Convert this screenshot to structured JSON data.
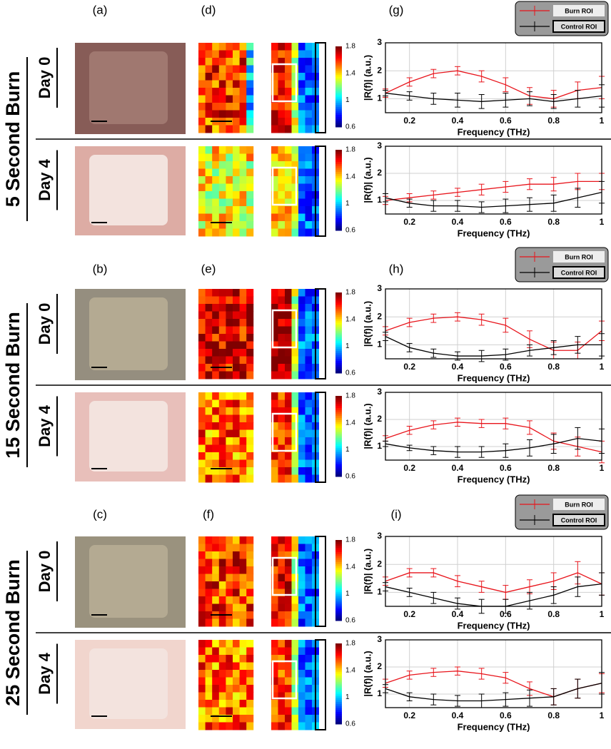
{
  "panel_labels": [
    "(a)",
    "(d)",
    "(g)",
    "(b)",
    "(e)",
    "(h)",
    "(c)",
    "(f)",
    "(i)"
  ],
  "rows": [
    {
      "burn": "5 Second Burn",
      "days": [
        "Day 0",
        "Day 4"
      ]
    },
    {
      "burn": "15 Second Burn",
      "days": [
        "Day 0",
        "Day 4"
      ]
    },
    {
      "burn": "25 Second Burn",
      "days": [
        "Day 0",
        "Day 4"
      ]
    }
  ],
  "colorbar_ticks": [
    1.8,
    1.4,
    1,
    0.6
  ],
  "chart_data": [
    {
      "type": "line",
      "legend": true,
      "xlabel": "Frequency (THz)",
      "ylabel": "|R(f)| (a.u.)",
      "xlim": [
        0.1,
        1
      ],
      "ylim": [
        0.5,
        3
      ],
      "xticks": [
        0.2,
        0.4,
        0.6,
        0.8,
        1
      ],
      "yticks": [
        1,
        2,
        3
      ],
      "grid": true,
      "x": [
        0.1,
        0.2,
        0.3,
        0.4,
        0.5,
        0.6,
        0.7,
        0.8,
        0.9,
        1
      ],
      "series": [
        {
          "name": "Burn ROI",
          "color": "#e8141b",
          "values": [
            1.2,
            1.6,
            1.9,
            2.0,
            1.8,
            1.5,
            1.1,
            1.0,
            1.3,
            1.4
          ],
          "errors": [
            0.15,
            0.15,
            0.15,
            0.15,
            0.2,
            0.25,
            0.3,
            0.3,
            0.3,
            0.4
          ]
        },
        {
          "name": "Control ROI",
          "color": "#000000",
          "values": [
            1.2,
            1.1,
            1.0,
            0.95,
            0.9,
            0.95,
            1.0,
            0.9,
            1.0,
            1.1
          ],
          "errors": [
            0.1,
            0.15,
            0.2,
            0.25,
            0.25,
            0.25,
            0.25,
            0.25,
            0.3,
            0.4
          ]
        }
      ]
    },
    {
      "type": "line",
      "legend": false,
      "xlabel": "Frequency (THz)",
      "ylabel": "|R(f)| (a.u.)",
      "xlim": [
        0.1,
        1
      ],
      "ylim": [
        0.5,
        3
      ],
      "xticks": [
        0.2,
        0.4,
        0.6,
        0.8,
        1
      ],
      "yticks": [
        1,
        2,
        3
      ],
      "grid": true,
      "x": [
        0.1,
        0.2,
        0.3,
        0.4,
        0.5,
        0.6,
        0.7,
        0.8,
        0.9,
        1
      ],
      "series": [
        {
          "name": "Burn ROI",
          "color": "#e8141b",
          "values": [
            1.0,
            1.1,
            1.2,
            1.3,
            1.4,
            1.5,
            1.6,
            1.6,
            1.7,
            1.7
          ],
          "errors": [
            0.15,
            0.15,
            0.15,
            0.15,
            0.2,
            0.2,
            0.2,
            0.25,
            0.3,
            0.3
          ]
        },
        {
          "name": "Control ROI",
          "color": "#000000",
          "values": [
            1.1,
            0.9,
            0.8,
            0.8,
            0.75,
            0.8,
            0.85,
            0.9,
            1.1,
            1.3
          ],
          "errors": [
            0.15,
            0.15,
            0.2,
            0.2,
            0.2,
            0.25,
            0.25,
            0.3,
            0.35,
            0.4
          ]
        }
      ]
    },
    {
      "type": "line",
      "legend": true,
      "xlabel": "Frequency (THz)",
      "ylabel": "|R(f)| (a.u.)",
      "xlim": [
        0.1,
        1
      ],
      "ylim": [
        0.5,
        3
      ],
      "xticks": [
        0.2,
        0.4,
        0.6,
        0.8,
        1
      ],
      "yticks": [
        1,
        2,
        3
      ],
      "grid": true,
      "x": [
        0.1,
        0.2,
        0.3,
        0.4,
        0.5,
        0.6,
        0.7,
        0.8,
        0.9,
        1
      ],
      "series": [
        {
          "name": "Burn ROI",
          "color": "#e8141b",
          "values": [
            1.5,
            1.8,
            1.95,
            2.0,
            1.9,
            1.7,
            1.2,
            0.8,
            0.8,
            1.5
          ],
          "errors": [
            0.15,
            0.15,
            0.15,
            0.15,
            0.2,
            0.25,
            0.3,
            0.3,
            0.3,
            0.35
          ]
        },
        {
          "name": "Control ROI",
          "color": "#000000",
          "values": [
            1.3,
            0.9,
            0.7,
            0.6,
            0.6,
            0.65,
            0.8,
            0.9,
            1.0,
            1.0
          ],
          "errors": [
            0.15,
            0.15,
            0.15,
            0.15,
            0.2,
            0.2,
            0.2,
            0.25,
            0.3,
            0.4
          ]
        }
      ]
    },
    {
      "type": "line",
      "legend": false,
      "xlabel": "Frequency (THz)",
      "ylabel": "|R(f)| (a.u.)",
      "xlim": [
        0.1,
        1
      ],
      "ylim": [
        0.5,
        3
      ],
      "xticks": [
        0.2,
        0.4,
        0.6,
        0.8,
        1
      ],
      "yticks": [
        1,
        2,
        3
      ],
      "grid": true,
      "x": [
        0.1,
        0.2,
        0.3,
        0.4,
        0.5,
        0.6,
        0.7,
        0.8,
        0.9,
        1
      ],
      "series": [
        {
          "name": "Burn ROI",
          "color": "#e8141b",
          "values": [
            1.3,
            1.6,
            1.8,
            1.9,
            1.85,
            1.85,
            1.7,
            1.2,
            1.0,
            0.8
          ],
          "errors": [
            0.1,
            0.15,
            0.15,
            0.15,
            0.15,
            0.2,
            0.25,
            0.3,
            0.35,
            0.4
          ]
        },
        {
          "name": "Control ROI",
          "color": "#000000",
          "values": [
            1.1,
            0.95,
            0.85,
            0.8,
            0.8,
            0.85,
            0.95,
            1.1,
            1.3,
            1.2
          ],
          "errors": [
            0.1,
            0.1,
            0.15,
            0.2,
            0.2,
            0.25,
            0.3,
            0.35,
            0.4,
            0.45
          ]
        }
      ]
    },
    {
      "type": "line",
      "legend": true,
      "xlabel": "Frequency (THz)",
      "ylabel": "|R(f)| (a.u.)",
      "xlim": [
        0.1,
        1
      ],
      "ylim": [
        0.5,
        3
      ],
      "xticks": [
        0.2,
        0.4,
        0.6,
        0.8,
        1
      ],
      "yticks": [
        1,
        2,
        3
      ],
      "grid": true,
      "x": [
        0.1,
        0.2,
        0.3,
        0.4,
        0.5,
        0.6,
        0.7,
        0.8,
        0.9,
        1
      ],
      "series": [
        {
          "name": "Burn ROI",
          "color": "#e8141b",
          "values": [
            1.4,
            1.7,
            1.7,
            1.4,
            1.2,
            1.0,
            1.2,
            1.4,
            1.7,
            1.3
          ],
          "errors": [
            0.15,
            0.15,
            0.15,
            0.2,
            0.2,
            0.25,
            0.25,
            0.3,
            0.4,
            0.4
          ]
        },
        {
          "name": "Control ROI",
          "color": "#000000",
          "values": [
            1.2,
            1.0,
            0.8,
            0.6,
            0.5,
            0.5,
            0.7,
            0.9,
            1.2,
            1.3
          ],
          "errors": [
            0.15,
            0.15,
            0.2,
            0.2,
            0.25,
            0.25,
            0.3,
            0.3,
            0.35,
            0.4
          ]
        }
      ]
    },
    {
      "type": "line",
      "legend": false,
      "xlabel": "Frequency (THz)",
      "ylabel": "|R(f)| (a.u.)",
      "xlim": [
        0.1,
        1
      ],
      "ylim": [
        0.5,
        3
      ],
      "xticks": [
        0.2,
        0.4,
        0.6,
        0.8,
        1
      ],
      "yticks": [
        1,
        2,
        3
      ],
      "grid": true,
      "x": [
        0.1,
        0.2,
        0.3,
        0.4,
        0.5,
        0.6,
        0.7,
        0.8,
        0.9,
        1
      ],
      "series": [
        {
          "name": "Burn ROI",
          "color": "#e8141b",
          "values": [
            1.4,
            1.7,
            1.8,
            1.85,
            1.75,
            1.6,
            1.2,
            0.9,
            1.2,
            1.4
          ],
          "errors": [
            0.15,
            0.15,
            0.15,
            0.15,
            0.2,
            0.2,
            0.25,
            0.3,
            0.35,
            0.35
          ]
        },
        {
          "name": "Control ROI",
          "color": "#000000",
          "values": [
            1.2,
            0.9,
            0.8,
            0.75,
            0.75,
            0.8,
            0.85,
            0.9,
            1.2,
            1.4
          ],
          "errors": [
            0.15,
            0.15,
            0.2,
            0.2,
            0.25,
            0.25,
            0.3,
            0.3,
            0.35,
            0.4
          ]
        }
      ]
    }
  ]
}
